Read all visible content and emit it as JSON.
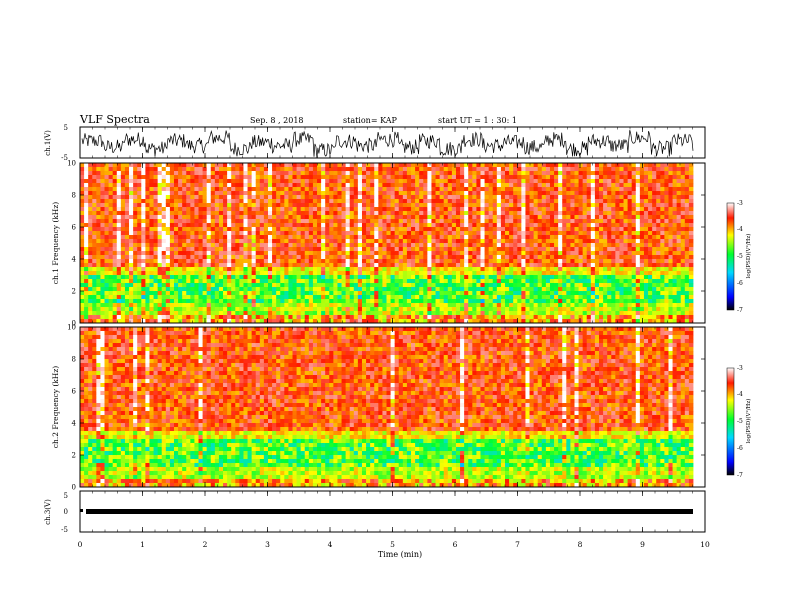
{
  "header": {
    "title": "VLF Spectra",
    "date": "Sep. 8 , 2018",
    "station": "station= KAP",
    "start": "start UT = 1 : 30: 1"
  },
  "chart_data": [
    {
      "type": "line",
      "ylabel": "ch.1(V)",
      "ylim": [
        -5,
        5
      ],
      "ytick_labels": [
        "-5",
        "5"
      ],
      "xlim": [
        0,
        10
      ],
      "series": [
        {
          "values": [
            0.5,
            -1.5,
            1,
            -2,
            0.5,
            -1,
            1.5,
            -2,
            0,
            -1,
            1,
            -2.5,
            0.5,
            -1,
            1,
            -1.5,
            0.5,
            -2,
            1,
            -1,
            0,
            -1.5,
            1,
            -2,
            0.5,
            -1,
            1.5,
            -2,
            0.5,
            -1
          ]
        }
      ]
    },
    {
      "type": "heatmap",
      "ylabel": "ch.1 Frequency (kHz)",
      "ylim": [
        0,
        10
      ],
      "ytick_labels": [
        "0",
        "2",
        "4",
        "6",
        "8",
        "10"
      ],
      "xlim": [
        0,
        10
      ],
      "colorbar": {
        "label": "log(PSD)(V²/Hz)",
        "range": [
          -7,
          -3
        ],
        "tick_labels": [
          "-3",
          "-4",
          "-5",
          "-6",
          "-7"
        ]
      }
    },
    {
      "type": "heatmap",
      "ylabel": "ch.2 Frequency (kHz)",
      "ylim": [
        0,
        10
      ],
      "ytick_labels": [
        "0",
        "2",
        "4",
        "6",
        "8",
        "10"
      ],
      "xlim": [
        0,
        10
      ],
      "colorbar": {
        "label": "log(PSD)(V²/Hz)",
        "range": [
          -7,
          -3
        ],
        "tick_labels": [
          "-3",
          "-4",
          "-5",
          "-6",
          "-7"
        ]
      }
    },
    {
      "type": "line",
      "ylabel": "ch.3(V)",
      "ylim": [
        -5,
        5
      ],
      "ytick_labels": [
        "-5",
        "0",
        "5"
      ],
      "xlim": [
        0,
        10
      ],
      "xlabel": "Time (min)",
      "xtick_labels": [
        "0",
        "1",
        "2",
        "3",
        "4",
        "5",
        "6",
        "7",
        "8",
        "9",
        "10"
      ],
      "series": [
        {
          "values": [
            0,
            0,
            0,
            0,
            0,
            0,
            0,
            0,
            0,
            0
          ]
        }
      ]
    }
  ]
}
